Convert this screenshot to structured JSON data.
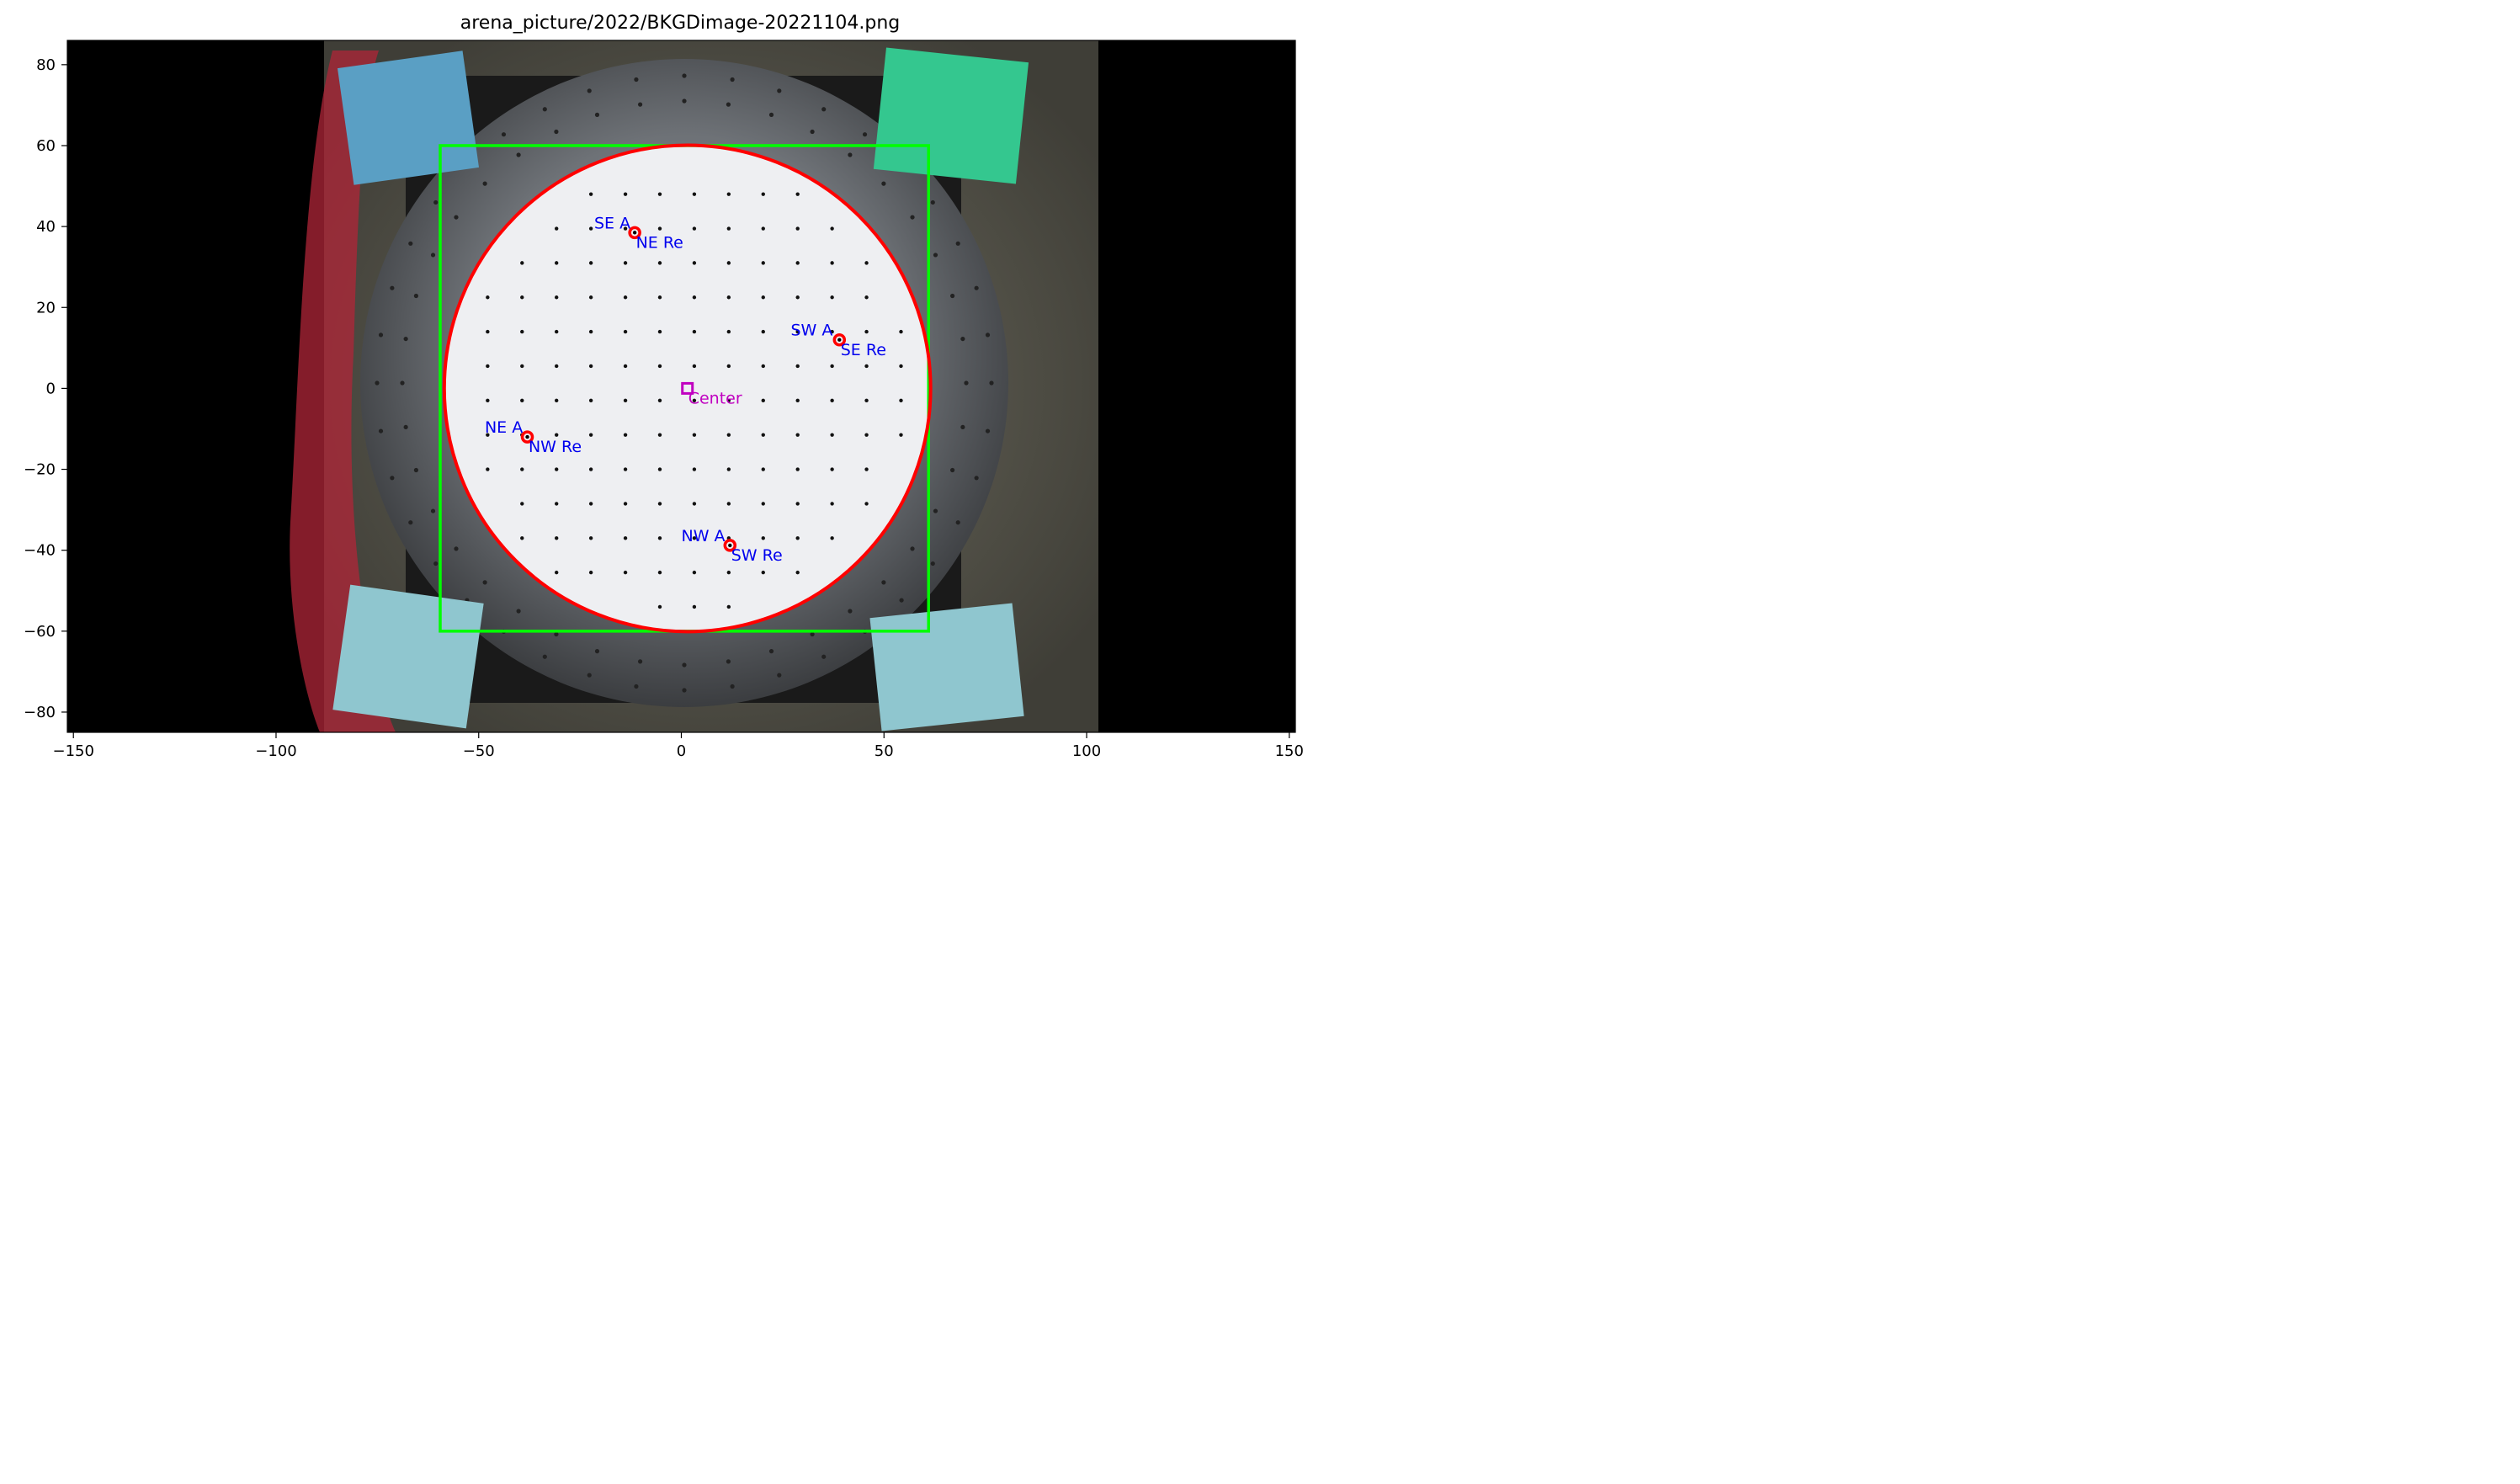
{
  "chart_data": {
    "type": "scatter",
    "title": "arena_picture/2022/BKGDimage-20221104.png",
    "xlim": [
      -151.5,
      151.5
    ],
    "ylim": [
      -85,
      86
    ],
    "x_ticks": [
      -150,
      -100,
      -50,
      0,
      50,
      100,
      150
    ],
    "y_ticks": [
      80,
      60,
      40,
      20,
      0,
      -20,
      -40,
      -60,
      -80
    ],
    "x_tick_labels": [
      "−150",
      "−100",
      "−50",
      "0",
      "50",
      "100",
      "150"
    ],
    "y_tick_labels": [
      "80",
      "60",
      "40",
      "20",
      "0",
      "−20",
      "−40",
      "−60",
      "−80"
    ],
    "grid": false,
    "background": "arena photograph",
    "arena_circle": {
      "center": [
        1.5,
        0
      ],
      "radius": 60,
      "color": "#ff0000"
    },
    "crop_square": {
      "x": [
        -59.5,
        61
      ],
      "y": [
        -60,
        60
      ],
      "color": "#00ff00"
    },
    "center_marker": {
      "x": 1.5,
      "y": 0,
      "label": "Center",
      "color": "#c000c0"
    },
    "markers": [
      {
        "x": -11.5,
        "y": 38.5,
        "color": "#ff0000",
        "labels": [
          {
            "text": "SE A",
            "dx": -10,
            "dy": 2.5
          },
          {
            "text": "NE Re",
            "dx": 0.3,
            "dy": -2.3
          }
        ]
      },
      {
        "x": 39,
        "y": 12,
        "color": "#ff0000",
        "labels": [
          {
            "text": "SW A",
            "dx": -12,
            "dy": 2.5
          },
          {
            "text": "SE Re",
            "dx": 0.3,
            "dy": -2.3
          }
        ]
      },
      {
        "x": -38,
        "y": -12,
        "color": "#ff0000",
        "labels": [
          {
            "text": "NE A",
            "dx": -10.5,
            "dy": 2.5
          },
          {
            "text": "NW Re",
            "dx": 0.3,
            "dy": -2.3
          }
        ]
      },
      {
        "x": 12,
        "y": -38.8,
        "color": "#ff0000",
        "labels": [
          {
            "text": "NW A",
            "dx": -12,
            "dy": 2.5
          },
          {
            "text": "SW Re",
            "dx": 0.3,
            "dy": -2.3
          }
        ]
      }
    ],
    "annotation_color": "#0000ee"
  }
}
